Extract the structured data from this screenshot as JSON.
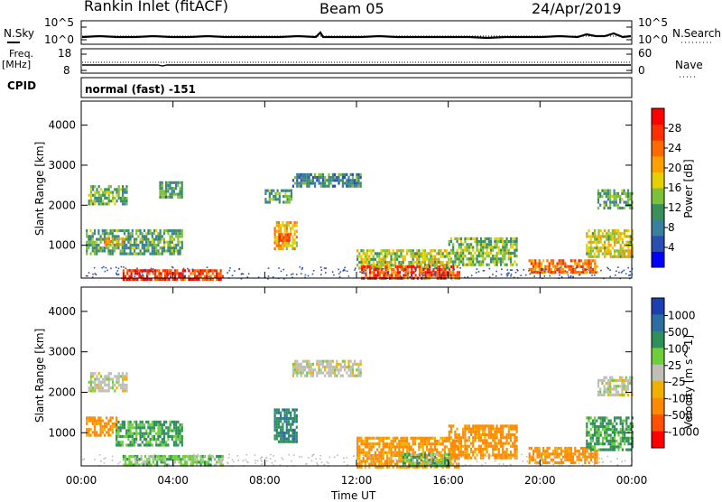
{
  "header": {
    "station": "Rankin Inlet (fitACF)",
    "beam": "Beam 05",
    "date": "24/Apr/2019"
  },
  "summary_panels": {
    "nsky_label": "N.Sky",
    "nsearch_label": "N.Search",
    "noise_ticks": [
      "10^5",
      "10^0"
    ],
    "freq_label_1": "Freq.",
    "freq_label_2": "[MHz]",
    "freq_ticks": [
      "18",
      "8"
    ],
    "nave_label": "Nave",
    "nave_ticks": [
      "60",
      "0"
    ],
    "cpid_label": "CPID",
    "cpid_value": "normal (fast) -151"
  },
  "colors": {
    "power_scale": [
      "#0000ff",
      "#2a4fb0",
      "#3a7f9f",
      "#3a8f5a",
      "#7fc03a",
      "#e6d000",
      "#ff9f00",
      "#ff6a00",
      "#ff3000",
      "#ff0000"
    ],
    "velocity_scale": [
      "#1e3fb0",
      "#2a6fa0",
      "#2f8f5a",
      "#6fcf3a",
      "#bfbfb8",
      "#f0b000",
      "#ff8a00",
      "#ff5000",
      "#ff0000"
    ]
  },
  "chart_data": [
    {
      "type": "heatmap",
      "title": "Power",
      "xlabel": "",
      "ylabel": "Slant Range [km]",
      "xlim": [
        "00:00",
        "24:00"
      ],
      "ylim": [
        180,
        4600
      ],
      "x_ticks": [
        "00:00",
        "04:00",
        "08:00",
        "12:00",
        "16:00",
        "20:00",
        "00:00"
      ],
      "y_ticks": [
        1000,
        2000,
        3000,
        4000
      ],
      "colorbar": {
        "label": "Power [dB]",
        "ticks": [
          4,
          8,
          12,
          16,
          20,
          24,
          28
        ],
        "range": [
          0,
          32
        ]
      },
      "regions": [
        {
          "t0": 0.3,
          "t1": 2.0,
          "r0": 2000,
          "r1": 2500,
          "value": 13
        },
        {
          "t0": 0.2,
          "t1": 4.4,
          "r0": 800,
          "r1": 1400,
          "value": 12
        },
        {
          "t0": 1.0,
          "t1": 1.8,
          "r0": 1000,
          "r1": 1200,
          "value": 20
        },
        {
          "t0": 1.8,
          "t1": 6.2,
          "r0": 180,
          "r1": 400,
          "value": 27
        },
        {
          "t0": 3.4,
          "t1": 4.4,
          "r0": 2200,
          "r1": 2600,
          "value": 11
        },
        {
          "t0": 8.4,
          "t1": 9.4,
          "r0": 900,
          "r1": 1600,
          "value": 20
        },
        {
          "t0": 8.6,
          "t1": 9.1,
          "r0": 1100,
          "r1": 1300,
          "value": 26
        },
        {
          "t0": 8.0,
          "t1": 9.2,
          "r0": 2100,
          "r1": 2400,
          "value": 12
        },
        {
          "t0": 9.2,
          "t1": 12.2,
          "r0": 2500,
          "r1": 2800,
          "value": 9
        },
        {
          "t0": 12.0,
          "t1": 16.0,
          "r0": 400,
          "r1": 900,
          "value": 16
        },
        {
          "t0": 12.2,
          "t1": 16.5,
          "r0": 180,
          "r1": 500,
          "value": 26
        },
        {
          "t0": 16.0,
          "t1": 19.0,
          "r0": 500,
          "r1": 1200,
          "value": 14
        },
        {
          "t0": 19.5,
          "t1": 22.5,
          "r0": 300,
          "r1": 650,
          "value": 24
        },
        {
          "t0": 22.0,
          "t1": 24.0,
          "r0": 700,
          "r1": 1400,
          "value": 17
        },
        {
          "t0": 22.5,
          "t1": 24.0,
          "r0": 1900,
          "r1": 2400,
          "value": 12
        }
      ]
    },
    {
      "type": "heatmap",
      "title": "Velocity",
      "xlabel": "Time UT",
      "ylabel": "Slant Range [km]",
      "xlim": [
        "00:00",
        "24:00"
      ],
      "ylim": [
        180,
        4600
      ],
      "x_ticks": [
        "00:00",
        "04:00",
        "08:00",
        "12:00",
        "16:00",
        "20:00",
        "00:00"
      ],
      "y_ticks": [
        1000,
        2000,
        3000,
        4000
      ],
      "colorbar": {
        "label": "Velocity [m s^-1]",
        "ticks": [
          1000,
          500,
          100,
          25,
          -25,
          -100,
          -500,
          -1000
        ]
      },
      "regions": [
        {
          "t0": 0.3,
          "t1": 2.0,
          "r0": 2000,
          "r1": 2500,
          "value": 0
        },
        {
          "t0": 0.2,
          "t1": 1.5,
          "r0": 900,
          "r1": 1400,
          "value": -200
        },
        {
          "t0": 1.5,
          "t1": 4.4,
          "r0": 700,
          "r1": 1300,
          "value": 150
        },
        {
          "t0": 1.8,
          "t1": 6.2,
          "r0": 180,
          "r1": 450,
          "value": 60
        },
        {
          "t0": 8.4,
          "t1": 9.4,
          "r0": 800,
          "r1": 1600,
          "value": 400
        },
        {
          "t0": 9.2,
          "t1": 12.2,
          "r0": 2400,
          "r1": 2800,
          "value": 0
        },
        {
          "t0": 12.0,
          "t1": 16.5,
          "r0": 180,
          "r1": 900,
          "value": -150
        },
        {
          "t0": 14.0,
          "t1": 16.0,
          "r0": 200,
          "r1": 500,
          "value": 80
        },
        {
          "t0": 16.0,
          "t1": 19.0,
          "r0": 400,
          "r1": 1200,
          "value": -200
        },
        {
          "t0": 19.5,
          "t1": 22.5,
          "r0": 250,
          "r1": 650,
          "value": -200
        },
        {
          "t0": 22.0,
          "t1": 24.0,
          "r0": 600,
          "r1": 1400,
          "value": 150
        },
        {
          "t0": 22.5,
          "t1": 24.0,
          "r0": 1900,
          "r1": 2400,
          "value": 0
        }
      ]
    }
  ]
}
